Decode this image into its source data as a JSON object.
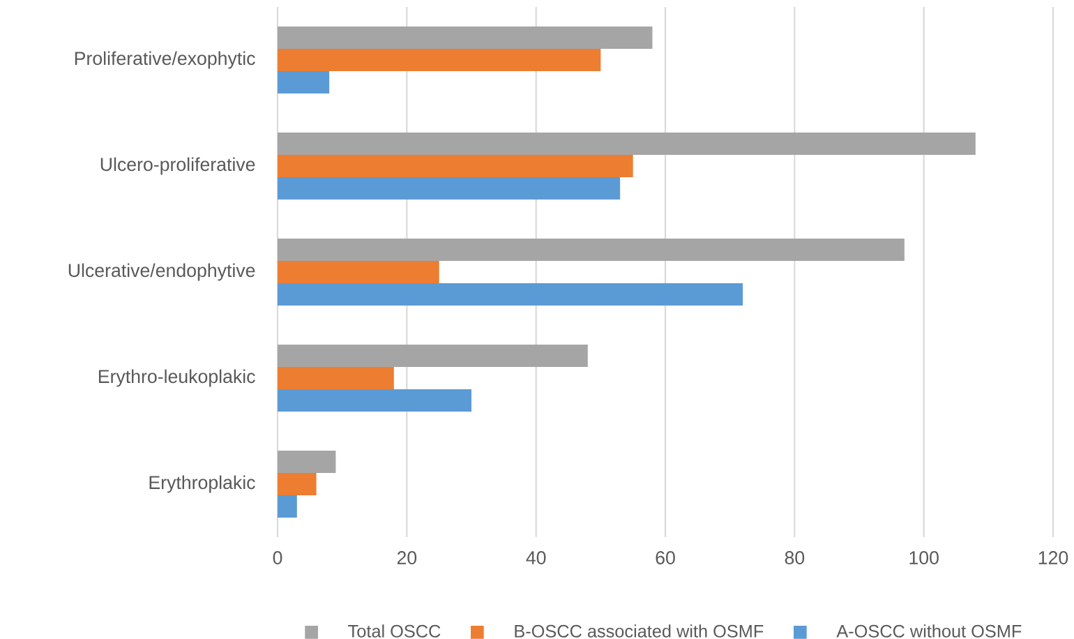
{
  "chart_data": {
    "type": "bar",
    "orientation": "horizontal",
    "categories": [
      "Proliferative/exophytic",
      "Ulcero-proliferative",
      "Ulcerative/endophytive",
      "Erythro-leukoplakic",
      "Erythroplakic"
    ],
    "series": [
      {
        "name": "Total OSCC",
        "color": "#a5a5a5",
        "values": [
          58,
          108,
          97,
          48,
          9
        ]
      },
      {
        "name": "B-OSCC associated with OSMF",
        "color": "#ed7d31",
        "values": [
          50,
          55,
          25,
          18,
          6
        ]
      },
      {
        "name": "A-OSCC without OSMF",
        "color": "#5b9bd5",
        "values": [
          8,
          53,
          72,
          30,
          3
        ]
      }
    ],
    "xlim": [
      0,
      120
    ],
    "xticks": [
      0,
      20,
      40,
      60,
      80,
      100,
      120
    ],
    "grid": "x",
    "legend": "bottom"
  }
}
